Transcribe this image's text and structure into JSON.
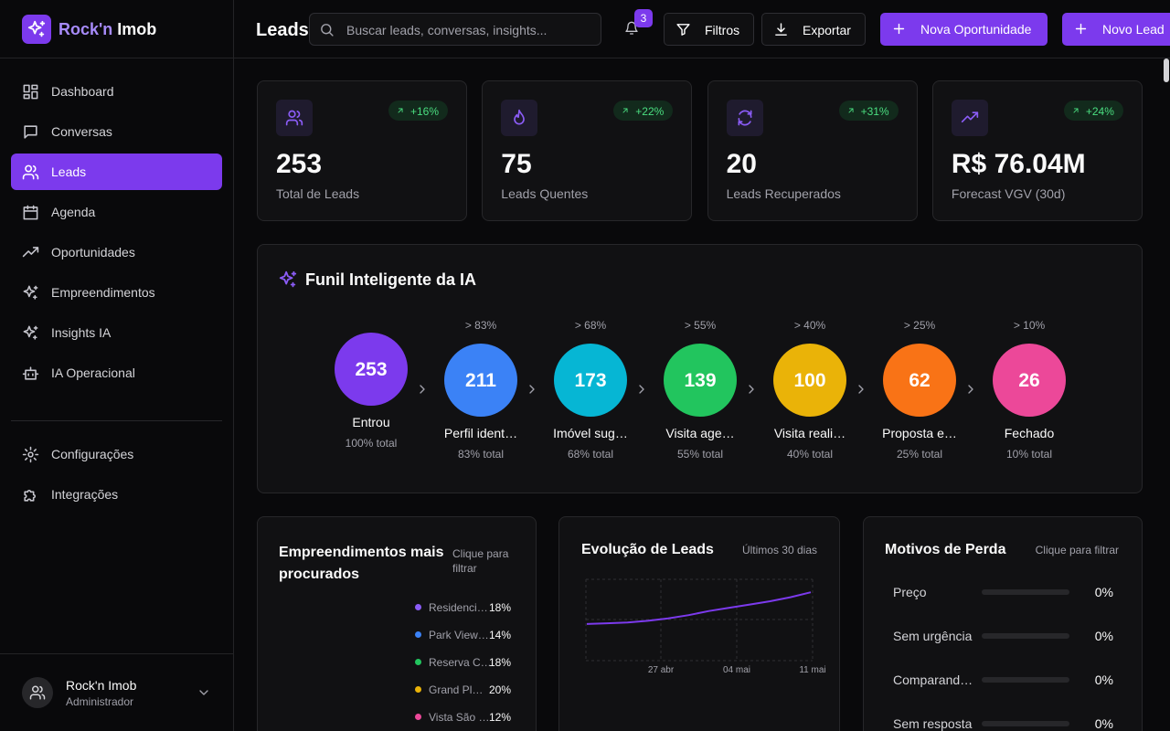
{
  "sidebar": {
    "brand_a": "Rock'n",
    "brand_b": "Imob",
    "nav": [
      "Dashboard",
      "Conversas",
      "Leads",
      "Agenda",
      "Oportunidades",
      "Empreendimentos",
      "Insights IA",
      "IA Operacional"
    ],
    "active": "Leads",
    "secondary_nav": [
      "Configurações",
      "Integrações"
    ],
    "user": {
      "name": "Rock'n Imob",
      "role": "Administrador"
    }
  },
  "header": {
    "title": "Leads",
    "search_placeholder": "Buscar leads, conversas, insights...",
    "notifications": 3,
    "buttons": [
      "Filtros",
      "Exportar",
      "Nova Oportunidade",
      "Novo Lead"
    ]
  },
  "kpis": [
    {
      "value": 253,
      "label": "Total de Leads",
      "change": "+16%"
    },
    {
      "value": 75,
      "label": "Leads Quentes",
      "change": "+22%"
    },
    {
      "value": 20,
      "label": "Leads Recuperados",
      "change": "+31%"
    },
    {
      "value": "R$ 76.04M",
      "label": "Forecast VGV (30d)",
      "change": "+24%"
    }
  ],
  "funnel": {
    "title": "Funil Inteligente da IA",
    "stages": [
      {
        "count": 253,
        "label": "Entrou",
        "total": "100% total",
        "color": "#7c3aed"
      },
      {
        "conversion": "> 83%",
        "count": 211,
        "label": "Perfil ident…",
        "total": "83% total",
        "color": "#3b82f6"
      },
      {
        "conversion": "> 68%",
        "count": 173,
        "label": "Imóvel sug…",
        "total": "68% total",
        "color": "#06b6d4"
      },
      {
        "conversion": "> 55%",
        "count": 139,
        "label": "Visita age…",
        "total": "55% total",
        "color": "#22c55e"
      },
      {
        "conversion": "> 40%",
        "count": 100,
        "label": "Visita reali…",
        "total": "40% total",
        "color": "#eab308"
      },
      {
        "conversion": "> 25%",
        "count": 62,
        "label": "Proposta e…",
        "total": "25% total",
        "color": "#f97316"
      },
      {
        "conversion": "> 10%",
        "count": 26,
        "label": "Fechado",
        "total": "10% total",
        "color": "#ec4899"
      }
    ]
  },
  "developments": {
    "title": "Empreendimentos mais procurados",
    "hint": "Clique para filtrar",
    "items": [
      {
        "name": "Residenci…",
        "share": "18%",
        "color": "#8b5cf6"
      },
      {
        "name": "Park View…",
        "share": "14%",
        "color": "#3b82f6"
      },
      {
        "name": "Reserva C…",
        "share": "18%",
        "color": "#22c55e"
      },
      {
        "name": "Grand Pl…",
        "share": "20%",
        "color": "#eab308"
      },
      {
        "name": "Vista São …",
        "share": "12%",
        "color": "#ec4899"
      }
    ]
  },
  "evolution": {
    "title": "Evolução de Leads",
    "subtitle": "Últimos 30 dias",
    "x_labels": [
      "27 abr",
      "04 mai",
      "11 mai"
    ],
    "values": [
      45,
      46,
      47,
      49,
      52,
      56,
      61,
      65,
      69,
      73,
      78,
      84
    ],
    "ylim": [
      0,
      100
    ],
    "color": "#7c3aed"
  },
  "loss_reasons": {
    "title": "Motivos de Perda",
    "hint": "Clique para filtrar",
    "items": [
      {
        "name": "Preço",
        "value": 0,
        "value_label": "0%"
      },
      {
        "name": "Sem urgência",
        "value": 0,
        "value_label": "0%"
      },
      {
        "name": "Comparand…",
        "value": 0,
        "value_label": "0%"
      },
      {
        "name": "Sem resposta",
        "value": 0,
        "value_label": "0%"
      }
    ]
  }
}
